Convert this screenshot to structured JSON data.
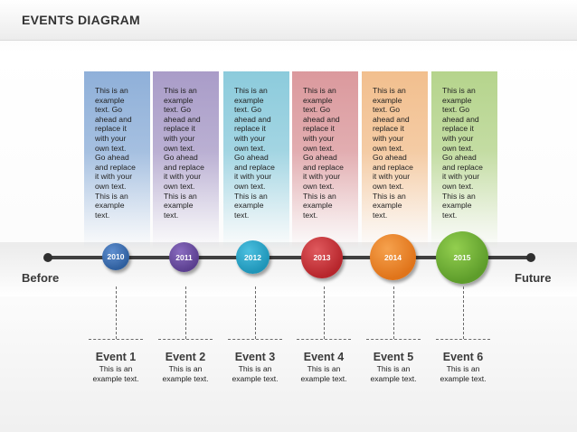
{
  "title": "EVENTS DIAGRAM",
  "before_label": "Before",
  "future_label": "Future",
  "columns": [
    {
      "text": "This is an\nexample\ntext. Go\nahead and\nreplace it\nwith your\nown text.\nGo ahead\nand replace\nit with your\nown text.\nThis is an\nexample\ntext.",
      "color": "#8fb0d9"
    },
    {
      "text": "This is an\nexample\ntext. Go\nahead and\nreplace it\nwith your\nown text.\nGo ahead\nand replace\nit with your\nown text.\nThis is an\nexample\ntext.",
      "color": "#a99cc8"
    },
    {
      "text": "This is an\nexample\ntext. Go\nahead and\nreplace it\nwith your\nown text.\nGo ahead\nand replace\nit with your\nown text.\nThis is an\nexample\ntext.",
      "color": "#8ccbdc"
    },
    {
      "text": "This is an\nexample\ntext. Go\nahead and\nreplace it\nwith your\nown text.\nGo ahead\nand replace\nit with your\nown text.\nThis is an\nexample\ntext.",
      "color": "#db999d"
    },
    {
      "text": "This is an\nexample\ntext. Go\nahead and\nreplace it\nwith your\nown text.\nGo ahead\nand replace\nit with your\nown text.\nThis is an\nexample\ntext.",
      "color": "#f2bf8e"
    },
    {
      "text": "This is an\nexample\ntext. Go\nahead and\nreplace it\nwith your\nown text.\nGo ahead\nand replace\nit with your\nown text.\nThis is an\nexample\ntext.",
      "color": "#b5d48c"
    }
  ],
  "nodes": [
    {
      "year": "2010",
      "color": "#2f5f9e",
      "color_light": "#5f8fd0"
    },
    {
      "year": "2011",
      "color": "#5b3f8f",
      "color_light": "#8a6cc0"
    },
    {
      "year": "2012",
      "color": "#1f95b8",
      "color_light": "#4cc0e0"
    },
    {
      "year": "2013",
      "color": "#b7262c",
      "color_light": "#e05a5e"
    },
    {
      "year": "2014",
      "color": "#e0741a",
      "color_light": "#f6a24e"
    },
    {
      "year": "2015",
      "color": "#5e9d2b",
      "color_light": "#93cf4f"
    }
  ],
  "events": [
    {
      "title": "Event 1",
      "desc": "This is an\nexample text."
    },
    {
      "title": "Event 2",
      "desc": "This is an\nexample text."
    },
    {
      "title": "Event 3",
      "desc": "This is an\nexample text."
    },
    {
      "title": "Event 4",
      "desc": "This is an\nexample text."
    },
    {
      "title": "Event 5",
      "desc": "This is an\nexample text."
    },
    {
      "title": "Event 6",
      "desc": "This is an\nexample text."
    }
  ]
}
